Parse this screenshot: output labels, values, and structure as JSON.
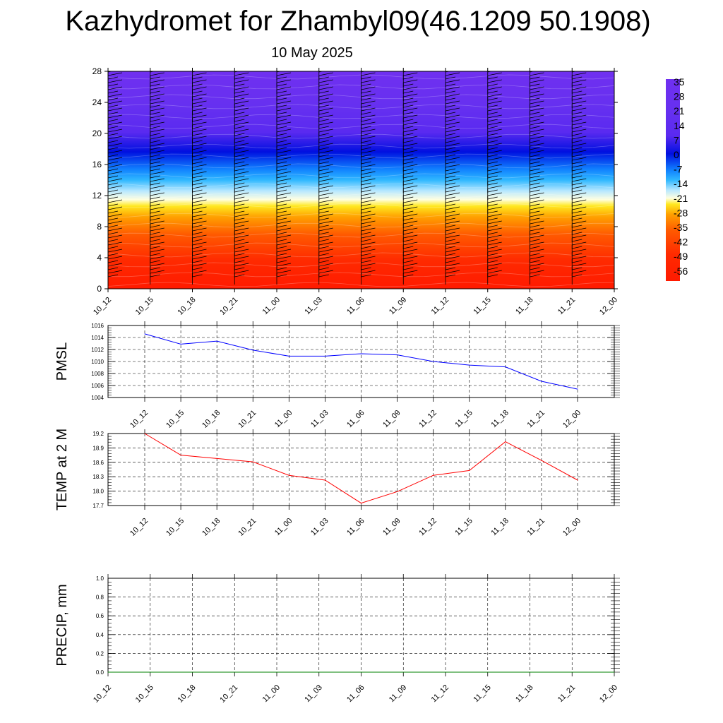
{
  "title": "Kazhydromet for Zhambyl09(46.1209 50.1908)",
  "subtitle": "10 May 2025",
  "colors": {
    "pmsl_line": "#0000ff",
    "temp_line": "#ff0000",
    "precip_line": "#008000",
    "barb": "#000000"
  },
  "chart_data": [
    {
      "type": "heatmap",
      "name_hint": "vertical cross-section",
      "x_tick_labels": [
        "10_12",
        "10_15",
        "10_18",
        "10_21",
        "11_00",
        "11_03",
        "11_06",
        "11_09",
        "11_12",
        "11_15",
        "11_18",
        "11_21",
        "12_00"
      ],
      "y_ticks": [
        0,
        4,
        8,
        12,
        16,
        20,
        24,
        28
      ],
      "ylim": [
        0,
        28
      ],
      "colorbar_labels": [
        "35",
        "28",
        "21",
        "14",
        "7",
        "0",
        "-7",
        "-14",
        "-21",
        "-28",
        "-35",
        "-42",
        "-49",
        "-56"
      ],
      "colorbar_values": [
        35,
        28,
        21,
        14,
        7,
        0,
        -7,
        -14,
        -21,
        -28,
        -35,
        -42,
        -49,
        -56
      ],
      "colormap": [
        {
          "t": 0.0,
          "c": "#ff1a00"
        },
        {
          "t": 0.13,
          "c": "#ff2a00"
        },
        {
          "t": 0.25,
          "c": "#ff5a00"
        },
        {
          "t": 0.33,
          "c": "#ffa000"
        },
        {
          "t": 0.38,
          "c": "#ffe820"
        },
        {
          "t": 0.41,
          "c": "#ffffe0"
        },
        {
          "t": 0.45,
          "c": "#b8e8ff"
        },
        {
          "t": 0.5,
          "c": "#30b8ff"
        },
        {
          "t": 0.55,
          "c": "#1080ff"
        },
        {
          "t": 0.63,
          "c": "#0010e0"
        },
        {
          "t": 0.72,
          "c": "#5a2af0"
        },
        {
          "t": 0.84,
          "c": "#6630f0"
        },
        {
          "t": 1.0,
          "c": "#7030f0"
        }
      ],
      "grid": false
    },
    {
      "type": "line",
      "ylabel": "PMSL",
      "categories": [
        "10_12",
        "10_15",
        "10_18",
        "10_21",
        "11_00",
        "11_03",
        "11_06",
        "11_09",
        "11_12",
        "11_15",
        "11_18",
        "11_21",
        "12_00"
      ],
      "values": [
        1014.6,
        1012.9,
        1013.4,
        1011.9,
        1010.9,
        1010.9,
        1011.3,
        1011.1,
        1010.0,
        1009.4,
        1009.1,
        1006.7,
        1005.4
      ],
      "y_ticks": [
        1004,
        1006,
        1008,
        1010,
        1012,
        1014,
        1016
      ],
      "ylim": [
        1004,
        1016
      ],
      "grid": true
    },
    {
      "type": "line",
      "ylabel": "TEMP at 2 M",
      "categories": [
        "10_12",
        "10_15",
        "10_18",
        "10_21",
        "11_00",
        "11_03",
        "11_06",
        "11_09",
        "11_12",
        "11_15",
        "11_18",
        "11_21",
        "12_00"
      ],
      "values": [
        19.2,
        18.75,
        18.68,
        18.61,
        18.33,
        18.23,
        17.75,
        17.99,
        18.33,
        18.43,
        19.03,
        18.64,
        18.23
      ],
      "y_ticks": [
        17.7,
        18.0,
        18.3,
        18.6,
        18.9,
        19.2
      ],
      "y_tick_labels": [
        "17.7",
        "18.0",
        "18.3",
        "18.6",
        "18.9",
        "19.2"
      ],
      "ylim": [
        17.7,
        19.2
      ],
      "grid": true
    },
    {
      "type": "line",
      "ylabel": "PRECIP, mm",
      "categories": [
        "10_12",
        "10_15",
        "10_18",
        "10_21",
        "11_00",
        "11_03",
        "11_06",
        "11_09",
        "11_12",
        "11_15",
        "11_18",
        "11_21",
        "12_00"
      ],
      "values": [
        0,
        0,
        0,
        0,
        0,
        0,
        0,
        0,
        0,
        0,
        0,
        0,
        0
      ],
      "y_ticks": [
        0.0,
        0.2,
        0.4,
        0.6,
        0.8,
        1.0
      ],
      "y_tick_labels": [
        "0.0",
        "0.2",
        "0.4",
        "0.6",
        "0.8",
        "1.0"
      ],
      "ylim": [
        0,
        1
      ],
      "grid": true
    }
  ]
}
